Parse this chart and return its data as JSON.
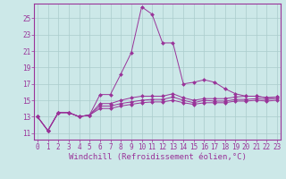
{
  "background_color": "#cce8e8",
  "grid_color": "#aacccc",
  "line_color": "#993399",
  "xlabel": "Windchill (Refroidissement éolien,°C)",
  "xlabel_fontsize": 6.5,
  "ytick_labels": [
    "11",
    "13",
    "15",
    "17",
    "19",
    "21",
    "23",
    "25"
  ],
  "ytick_values": [
    11,
    13,
    15,
    17,
    19,
    21,
    23,
    25
  ],
  "xtick_values": [
    0,
    1,
    2,
    3,
    4,
    5,
    6,
    7,
    8,
    9,
    10,
    11,
    12,
    13,
    14,
    15,
    16,
    17,
    18,
    19,
    20,
    21,
    22,
    23
  ],
  "xlim": [
    -0.3,
    23.3
  ],
  "ylim": [
    10.2,
    26.8
  ],
  "lines": [
    [
      13.0,
      11.3,
      13.5,
      13.5,
      13.0,
      13.2,
      15.7,
      15.7,
      18.2,
      20.8,
      26.4,
      25.5,
      22.0,
      22.0,
      17.0,
      17.2,
      17.5,
      17.2,
      16.4,
      15.8,
      15.5,
      15.5,
      15.3,
      15.4
    ],
    [
      13.0,
      11.3,
      13.5,
      13.5,
      13.0,
      13.2,
      14.6,
      14.6,
      15.0,
      15.3,
      15.5,
      15.5,
      15.5,
      15.8,
      15.3,
      15.0,
      15.2,
      15.2,
      15.2,
      15.4,
      15.5,
      15.5,
      15.3,
      15.4
    ],
    [
      13.0,
      11.3,
      13.5,
      13.5,
      13.0,
      13.2,
      14.3,
      14.3,
      14.6,
      14.8,
      15.0,
      15.1,
      15.1,
      15.4,
      15.0,
      14.7,
      15.0,
      14.9,
      14.9,
      15.1,
      15.1,
      15.2,
      15.1,
      15.2
    ],
    [
      13.0,
      11.3,
      13.5,
      13.5,
      13.0,
      13.2,
      14.0,
      14.0,
      14.3,
      14.5,
      14.7,
      14.8,
      14.8,
      15.0,
      14.7,
      14.5,
      14.7,
      14.7,
      14.7,
      14.9,
      14.9,
      15.0,
      14.9,
      15.0
    ]
  ],
  "tick_fontsize": 5.5,
  "tick_color": "#993399",
  "spine_color": "#993399"
}
